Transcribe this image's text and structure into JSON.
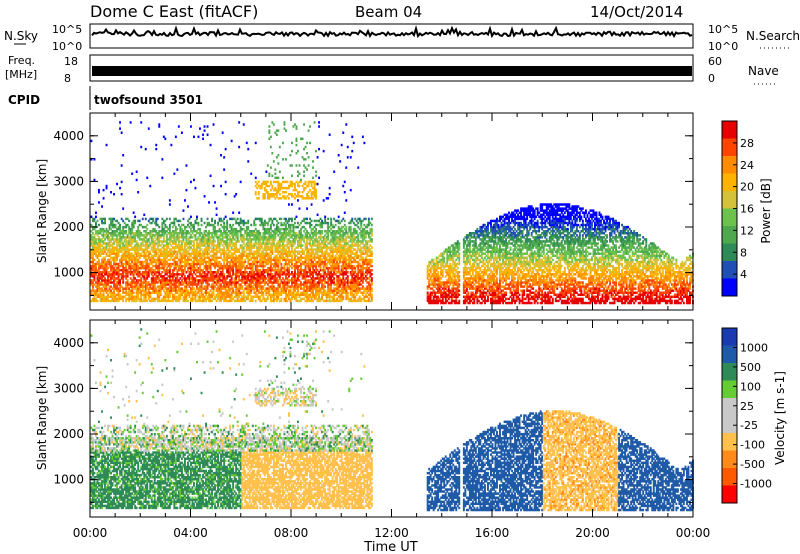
{
  "header": {
    "title": "Dome C East (fitACF)",
    "beam": "Beam 04",
    "date": "14/Oct/2014"
  },
  "noise_panel": {
    "left_label": "N.Sky",
    "right_label": "N.Search",
    "left_ticks": [
      "10^5",
      "10^0"
    ],
    "right_ticks": [
      "10^5",
      "10^0"
    ]
  },
  "freq_panel": {
    "left_label_line1": "Freq.",
    "left_label_line2": "[MHz]",
    "right_label": "Nave",
    "left_ticks": [
      "18",
      "8"
    ],
    "right_ticks": [
      "60",
      "0"
    ]
  },
  "cpid_panel": {
    "label": "CPID",
    "value": "twofsound 3501"
  },
  "colors": {
    "power_scale": [
      "#0000ff",
      "#1f4fb4",
      "#2e8b57",
      "#4ea84e",
      "#6dc24d",
      "#d4c23a",
      "#ffb300",
      "#ff8c00",
      "#ff4500",
      "#e60000"
    ],
    "velocity_scale": [
      "#ff0000",
      "#ff5a00",
      "#ff8c1a",
      "#ffc04d",
      "#c8c8c8",
      "#c8c8c8",
      "#66cc33",
      "#2e8b57",
      "#1e5aa8",
      "#1a3bb0"
    ]
  },
  "chart_data": [
    {
      "type": "heatmap",
      "name": "power-panel",
      "xlabel": "Time UT",
      "ylabel": "Slant Range [km]",
      "x_ticks": [
        "00:00",
        "04:00",
        "08:00",
        "12:00",
        "16:00",
        "20:00",
        "00:00"
      ],
      "x_tick_hours": [
        0,
        4,
        8,
        12,
        16,
        20,
        24
      ],
      "y_ticks": [
        1000,
        2000,
        3000,
        4000
      ],
      "ylim": [
        180,
        4500
      ],
      "xlim": [
        0,
        24
      ],
      "colorbar": {
        "label": "Power [dB]",
        "ticks": [
          "28",
          "24",
          "20",
          "16",
          "12",
          "8",
          "4"
        ],
        "range": [
          0,
          32
        ]
      }
    },
    {
      "type": "heatmap",
      "name": "velocity-panel",
      "xlabel": "Time UT",
      "ylabel": "Slant Range [km]",
      "x_ticks": [
        "00:00",
        "04:00",
        "08:00",
        "12:00",
        "16:00",
        "20:00",
        "00:00"
      ],
      "x_tick_hours": [
        0,
        4,
        8,
        12,
        16,
        20,
        24
      ],
      "y_ticks": [
        1000,
        2000,
        3000,
        4000
      ],
      "ylim": [
        180,
        4500
      ],
      "xlim": [
        0,
        24
      ],
      "colorbar": {
        "label": "Velocity [m s-1]",
        "ticks": [
          "1000",
          "500",
          "100",
          "25",
          "-25",
          "-100",
          "-500",
          "-1000"
        ]
      }
    }
  ]
}
